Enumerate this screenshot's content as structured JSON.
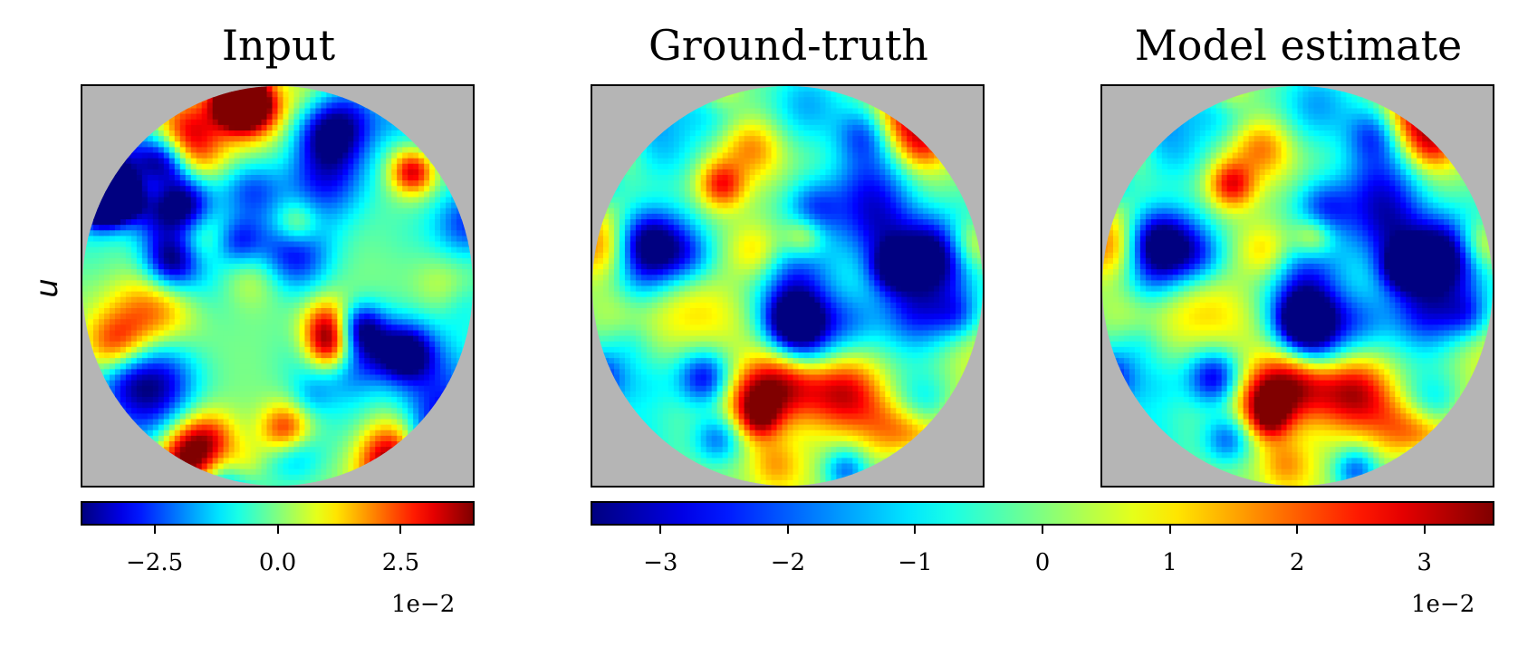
{
  "panels": [
    {
      "title": "Input"
    },
    {
      "title": "Ground-truth"
    },
    {
      "title": "Model estimate"
    }
  ],
  "row_label": "u",
  "colorbars": [
    {
      "ticks": [
        "−2.5",
        "0.0",
        "2.5"
      ],
      "offset": "1e−2"
    },
    {
      "ticks": [
        "−3",
        "−2",
        "−1",
        "0",
        "1",
        "2",
        "3"
      ],
      "offset": "1e−2"
    }
  ],
  "colors": {
    "background_mask": "#b5b5b5",
    "colormap": "jet"
  },
  "chart_data": [
    {
      "type": "heatmap",
      "title": "Input",
      "ylabel": "u",
      "colormap": "jet",
      "domain": "disk",
      "clim": [
        -0.04,
        0.04
      ],
      "colorbar_ticks": [
        -0.025,
        0.0,
        0.025
      ],
      "colorbar_offset": "1e−2"
    },
    {
      "type": "heatmap",
      "title": "Ground-truth",
      "colormap": "jet",
      "domain": "disk",
      "clim": [
        -0.0355,
        0.0355
      ],
      "colorbar_ticks": [
        -0.03,
        -0.02,
        -0.01,
        0,
        0.01,
        0.02,
        0.03
      ],
      "colorbar_offset": "1e−2"
    },
    {
      "type": "heatmap",
      "title": "Model estimate",
      "colormap": "jet",
      "domain": "disk",
      "clim": [
        -0.0355,
        0.0355
      ],
      "colorbar_ticks": [
        -0.03,
        -0.02,
        -0.01,
        0,
        0.01,
        0.02,
        0.03
      ],
      "colorbar_offset": "1e−2"
    }
  ]
}
